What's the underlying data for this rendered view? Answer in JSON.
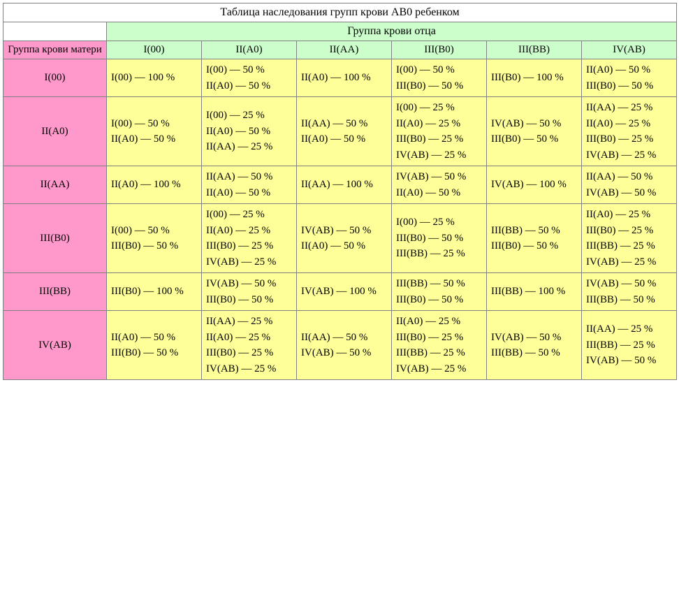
{
  "colors": {
    "header_green": "#ccfecc",
    "mother_pink": "#ff99cc",
    "cell_yellow": "#ffff99",
    "border": "#808080",
    "white": "#ffffff"
  },
  "title": "Таблица наследования групп крови AB0 ребенком",
  "father_label": "Группа крови отца",
  "mother_label": "Группа крови матери",
  "father_types": [
    "I(00)",
    "II(A0)",
    "II(AA)",
    "III(B0)",
    "III(BB)",
    "IV(AB)"
  ],
  "mother_types": [
    "I(00)",
    "II(A0)",
    "II(AA)",
    "III(B0)",
    "III(BB)",
    "IV(AB)"
  ],
  "grid": [
    [
      [
        [
          "I(00)",
          "100 %"
        ]
      ],
      [
        [
          "I(00)",
          "50 %"
        ],
        [
          "II(A0)",
          "50 %"
        ]
      ],
      [
        [
          "II(A0)",
          "100 %"
        ]
      ],
      [
        [
          "I(00)",
          "50 %"
        ],
        [
          "III(B0)",
          "50 %"
        ]
      ],
      [
        [
          "III(B0)",
          "100 %"
        ]
      ],
      [
        [
          "II(A0)",
          "50 %"
        ],
        [
          "III(B0)",
          "50 %"
        ]
      ]
    ],
    [
      [
        [
          "I(00)",
          "50 %"
        ],
        [
          "II(A0)",
          "50 %"
        ]
      ],
      [
        [
          "I(00)",
          "25 %"
        ],
        [
          "II(A0)",
          "50 %"
        ],
        [
          "II(AA)",
          "25 %"
        ]
      ],
      [
        [
          "II(AA)",
          "50 %"
        ],
        [
          "II(A0)",
          "50 %"
        ]
      ],
      [
        [
          "I(00)",
          "25 %"
        ],
        [
          "II(A0)",
          "25 %"
        ],
        [
          "III(B0)",
          "25 %"
        ],
        [
          "IV(AB)",
          "25 %"
        ]
      ],
      [
        [
          "IV(AB)",
          "50 %"
        ],
        [
          "III(B0)",
          "50 %"
        ]
      ],
      [
        [
          "II(AA)",
          "25 %"
        ],
        [
          "II(A0)",
          "25 %"
        ],
        [
          "III(B0)",
          "25 %"
        ],
        [
          "IV(AB)",
          "25 %"
        ]
      ]
    ],
    [
      [
        [
          "II(A0)",
          "100 %"
        ]
      ],
      [
        [
          "II(AA)",
          "50 %"
        ],
        [
          "II(A0)",
          "50 %"
        ]
      ],
      [
        [
          "II(AA)",
          "100 %"
        ]
      ],
      [
        [
          "IV(AB)",
          "50 %"
        ],
        [
          "II(A0)",
          "50 %"
        ]
      ],
      [
        [
          "IV(AB)",
          "100 %"
        ]
      ],
      [
        [
          "II(AA)",
          "50 %"
        ],
        [
          "IV(AB)",
          "50 %"
        ]
      ]
    ],
    [
      [
        [
          "I(00)",
          "50 %"
        ],
        [
          "III(B0)",
          "50 %"
        ]
      ],
      [
        [
          "I(00)",
          "25 %"
        ],
        [
          "II(A0)",
          "25 %"
        ],
        [
          "III(B0)",
          "25 %"
        ],
        [
          "IV(AB)",
          "25 %"
        ]
      ],
      [
        [
          "IV(AB)",
          "50 %"
        ],
        [
          "II(A0)",
          "50 %"
        ]
      ],
      [
        [
          "I(00)",
          "25 %"
        ],
        [
          "III(B0)",
          "50 %"
        ],
        [
          "III(BB)",
          "25 %"
        ]
      ],
      [
        [
          "III(BB)",
          "50 %"
        ],
        [
          "III(B0)",
          "50 %"
        ]
      ],
      [
        [
          "II(A0)",
          "25 %"
        ],
        [
          "III(B0)",
          "25 %"
        ],
        [
          "III(BB)",
          "25 %"
        ],
        [
          "IV(AB)",
          "25 %"
        ]
      ]
    ],
    [
      [
        [
          "III(B0)",
          "100 %"
        ]
      ],
      [
        [
          "IV(AB)",
          "50 %"
        ],
        [
          "III(B0)",
          "50 %"
        ]
      ],
      [
        [
          "IV(AB)",
          "100 %"
        ]
      ],
      [
        [
          "III(BB)",
          "50 %"
        ],
        [
          "III(B0)",
          "50 %"
        ]
      ],
      [
        [
          "III(BB)",
          "100 %"
        ]
      ],
      [
        [
          "IV(AB)",
          "50 %"
        ],
        [
          "III(BB)",
          "50 %"
        ]
      ]
    ],
    [
      [
        [
          "II(A0)",
          "50 %"
        ],
        [
          "III(B0)",
          "50 %"
        ]
      ],
      [
        [
          "II(AA)",
          "25 %"
        ],
        [
          "II(A0)",
          "25 %"
        ],
        [
          "III(B0)",
          "25 %"
        ],
        [
          "IV(AB)",
          "25 %"
        ]
      ],
      [
        [
          "II(AA)",
          "50 %"
        ],
        [
          "IV(AB)",
          "50 %"
        ]
      ],
      [
        [
          "II(A0)",
          "25 %"
        ],
        [
          "III(B0)",
          "25 %"
        ],
        [
          "III(BB)",
          "25 %"
        ],
        [
          "IV(AB)",
          "25 %"
        ]
      ],
      [
        [
          "IV(AB)",
          "50 %"
        ],
        [
          "III(BB)",
          "50 %"
        ]
      ],
      [
        [
          "II(AA)",
          "25 %"
        ],
        [
          "III(BB)",
          "25 %"
        ],
        [
          "IV(AB)",
          "50 %"
        ]
      ]
    ]
  ]
}
